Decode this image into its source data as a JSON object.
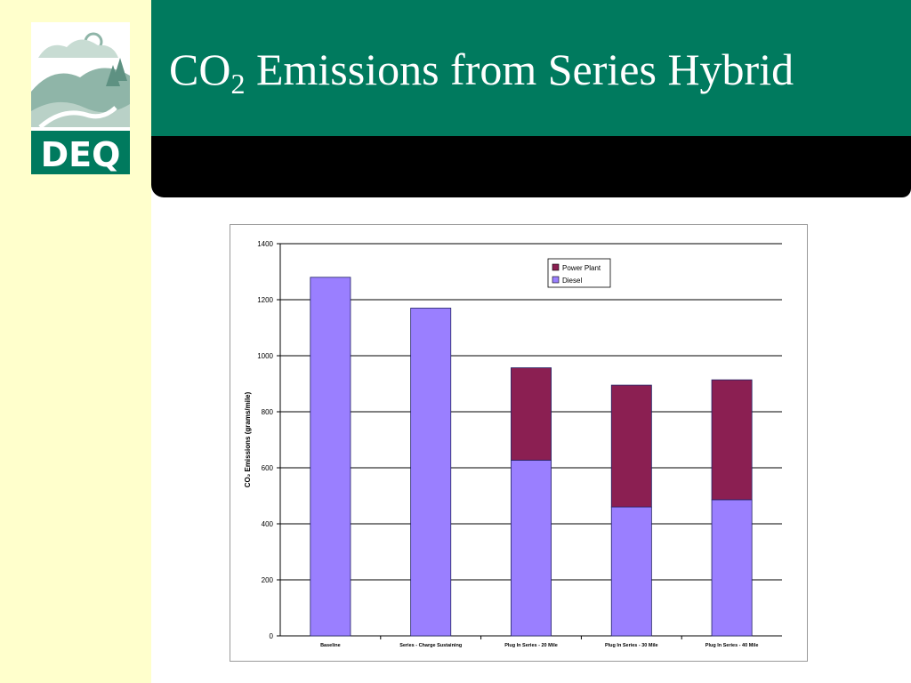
{
  "slide": {
    "title_main": "CO",
    "title_sub": "2",
    "title_rest": " Emissions from Series Hybrid",
    "logo_text": "DEQ"
  },
  "colors": {
    "header_green": "#007a5e",
    "strip": "#ffffcc",
    "diesel": "#9a7fff",
    "power_plant": "#8b1f52"
  },
  "chart_data": {
    "type": "bar",
    "stacked": true,
    "categories": [
      "Baseline",
      "Series - Charge Sustaining",
      "Plug In Series - 20 Mile",
      "Plug In Series - 30 Mile",
      "Plug In Series - 40 Mile"
    ],
    "series": [
      {
        "name": "Diesel",
        "values": [
          1280,
          1170,
          627,
          460,
          486
        ],
        "color": "#9a7fff"
      },
      {
        "name": "Power Plant",
        "values": [
          0,
          0,
          330,
          435,
          428
        ],
        "color": "#8b1f52"
      }
    ],
    "ylabel": "CO₂ Emissions (grams/mile)",
    "ylim": [
      0,
      1400
    ],
    "yticks": [
      0,
      200,
      400,
      600,
      800,
      1000,
      1200,
      1400
    ],
    "grid": true,
    "legend": "top-right"
  }
}
